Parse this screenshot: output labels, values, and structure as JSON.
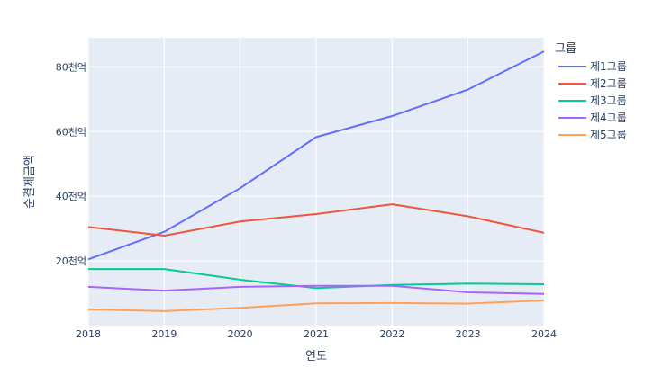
{
  "chart_data": {
    "type": "line",
    "xlabel": "연도",
    "ylabel": "순결제금액",
    "x": [
      2018,
      2019,
      2020,
      2021,
      2022,
      2023,
      2024
    ],
    "x_tick_labels": [
      "2018",
      "2019",
      "2020",
      "2021",
      "2022",
      "2023",
      "2024"
    ],
    "ylim": [
      0,
      89000
    ],
    "y_ticks": [
      20000,
      40000,
      60000,
      80000
    ],
    "y_tick_labels": [
      "20천억",
      "40천억",
      "60천억",
      "80천억"
    ],
    "grid": true,
    "legend": {
      "title": "그룹",
      "placement": "right"
    },
    "series": [
      {
        "name": "제1그룹",
        "color": "#636efa",
        "values": [
          20500,
          29000,
          42500,
          58300,
          64800,
          73000,
          84800
        ]
      },
      {
        "name": "제2그룹",
        "color": "#ef553b",
        "values": [
          30500,
          27800,
          32200,
          34500,
          37500,
          33800,
          28700
        ]
      },
      {
        "name": "제3그룹",
        "color": "#00cc96",
        "values": [
          17500,
          17500,
          14200,
          11600,
          12600,
          13000,
          12800
        ]
      },
      {
        "name": "제4그룹",
        "color": "#ab63fa",
        "values": [
          12000,
          10800,
          12000,
          12300,
          12300,
          10300,
          9800
        ]
      },
      {
        "name": "제5그룹",
        "color": "#ffa15a",
        "values": [
          5000,
          4500,
          5500,
          6900,
          7000,
          6800,
          7800
        ]
      }
    ]
  }
}
